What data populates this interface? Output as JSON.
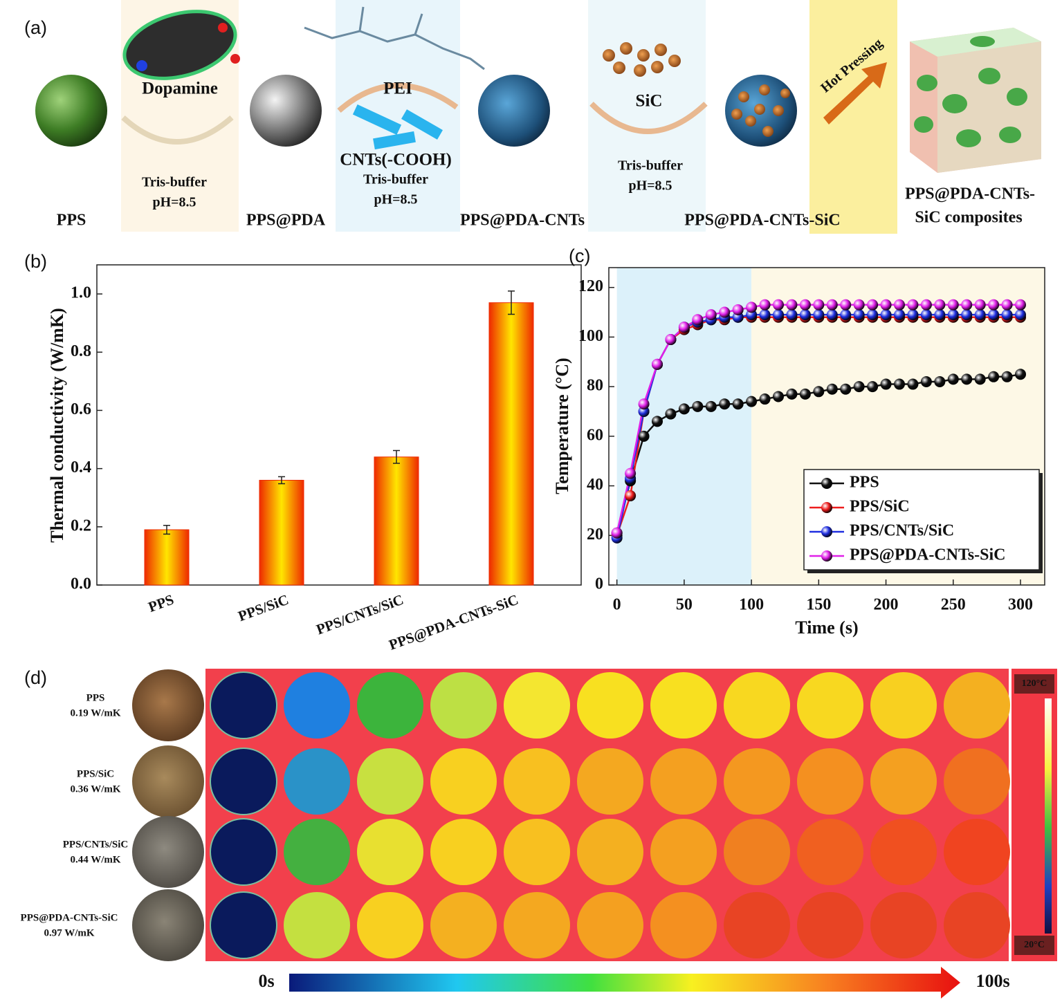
{
  "panel_a": {
    "label": "(a)",
    "products": [
      "PPS",
      "PPS@PDA",
      "PPS@PDA-CNTs",
      "PPS@PDA-CNTs-SiC"
    ],
    "final": [
      "PPS@PDA-CNTs-",
      "SiC composites"
    ],
    "reagents": [
      {
        "name": "Dopamine",
        "conditions": [
          "Tris-buffer",
          "pH=8.5"
        ]
      },
      {
        "name": "PEI",
        "extra": "CNTs(-COOH)",
        "conditions": [
          "Tris-buffer",
          "pH=8.5"
        ]
      },
      {
        "name": "SiC",
        "conditions": [
          "Tris-buffer",
          "pH=8.5"
        ]
      }
    ],
    "process": "Hot Pressing"
  },
  "chart_data": [
    {
      "type": "bar",
      "label": "(b)",
      "y_label": "Thermal conductivity (W/mK)",
      "categories": [
        "PPS",
        "PPS/SiC",
        "PPS/CNTs/SiC",
        "PPS@PDA-CNTs-SiC"
      ],
      "values": [
        0.19,
        0.36,
        0.44,
        0.97
      ],
      "errors": [
        0.015,
        0.012,
        0.022,
        0.04
      ],
      "color": "#ffe600",
      "edge_color": "#ee2a00",
      "ylim": [
        0,
        1.1
      ],
      "yticks": [
        {
          "value": 0,
          "label": "0.0"
        },
        0.2,
        0.4,
        0.6,
        0.8,
        {
          "value": 1,
          "label": "1.0"
        }
      ]
    },
    {
      "type": "line",
      "label": "(c)",
      "x_label": "Time (s)",
      "y_label": "Temperature (°C)",
      "x": [
        0,
        10,
        20,
        30,
        40,
        50,
        60,
        70,
        80,
        90,
        100,
        110,
        120,
        130,
        140,
        150,
        160,
        170,
        180,
        190,
        200,
        210,
        220,
        230,
        240,
        250,
        260,
        270,
        280,
        290,
        300
      ],
      "series": [
        {
          "name": "PPS",
          "color": "#111111",
          "values": [
            21,
            42,
            60,
            66,
            69,
            71,
            72,
            72,
            73,
            73,
            74,
            75,
            76,
            77,
            77,
            78,
            79,
            79,
            80,
            80,
            81,
            81,
            81,
            82,
            82,
            83,
            83,
            83,
            84,
            84,
            85
          ]
        },
        {
          "name": "PPS/SiC",
          "color": "#ee1c1c",
          "values": [
            20,
            36,
            70,
            89,
            99,
            103,
            105,
            107,
            107,
            108,
            108,
            108,
            108,
            108,
            108,
            108,
            108,
            108,
            108,
            108,
            108,
            108,
            108,
            108,
            108,
            108,
            108,
            108,
            108,
            108,
            108
          ]
        },
        {
          "name": "PPS/CNTs/SiC",
          "color": "#1f2ee0",
          "values": [
            19,
            43,
            70,
            89,
            99,
            104,
            106,
            107,
            108,
            108,
            109,
            109,
            109,
            109,
            109,
            109,
            109,
            109,
            109,
            109,
            109,
            109,
            109,
            109,
            109,
            109,
            109,
            109,
            109,
            109,
            109
          ]
        },
        {
          "name": "PPS@PDA-CNTs-SiC",
          "color": "#e020e8",
          "values": [
            21,
            45,
            73,
            89,
            99,
            104,
            107,
            109,
            110,
            111,
            112,
            113,
            113,
            113,
            113,
            113,
            113,
            113,
            113,
            113,
            113,
            113,
            113,
            113,
            113,
            113,
            113,
            113,
            113,
            113,
            113
          ]
        }
      ],
      "shade_regions": [
        {
          "range": [
            0,
            100
          ],
          "color": "#dcf1fa"
        },
        {
          "range": [
            100,
            318
          ],
          "color": "#fdf8e6"
        }
      ],
      "xlim": [
        -6,
        318
      ],
      "ylim": [
        0,
        128
      ],
      "xticks": [
        0,
        50,
        100,
        150,
        200,
        250,
        300
      ],
      "yticks": [
        0,
        20,
        40,
        60,
        80,
        100,
        120
      ],
      "legend": "lower right"
    }
  ],
  "panel_d": {
    "label": "(d)",
    "rows": [
      {
        "name": "PPS",
        "value": "0.19 W/mK",
        "color": "#111111",
        "frames": [
          "#0a1a5c",
          "#1f80e0",
          "#3cb43c",
          "#bde044",
          "#f4e630",
          "#f8e020",
          "#f8e020",
          "#f8d820",
          "#f8d820",
          "#f8d020",
          "#f4b020"
        ]
      },
      {
        "name": "PPS/SiC",
        "value": "0.36 W/mK",
        "color": "#e8202a",
        "frames": [
          "#0a1a5c",
          "#2a92c8",
          "#c8e040",
          "#f8d020",
          "#f8c020",
          "#f4a820",
          "#f4a020",
          "#f49820",
          "#f49020",
          "#f4a020",
          "#f07020"
        ]
      },
      {
        "name": "PPS/CNTs/SiC",
        "value": "0.44 W/mK",
        "color": "#2a7fd8",
        "frames": [
          "#0a1a5c",
          "#44b040",
          "#e8e030",
          "#f8d020",
          "#f8c020",
          "#f4b020",
          "#f4a020",
          "#f08020",
          "#f06020",
          "#f05020",
          "#f04420"
        ]
      },
      {
        "name": "PPS@PDA-CNTs-SiC",
        "value": "0.97 W/mK",
        "color": "#e020e0",
        "frames": [
          "#0a1a5c",
          "#c4e040",
          "#f8d020",
          "#f4b020",
          "#f4a820",
          "#f4a020",
          "#f49020",
          "#e84424",
          "#e84424",
          "#e84424",
          "#e84424"
        ]
      }
    ],
    "scale_max": "120°C",
    "scale_min": "20°C",
    "time_start": "0s",
    "time_end": "100s"
  }
}
